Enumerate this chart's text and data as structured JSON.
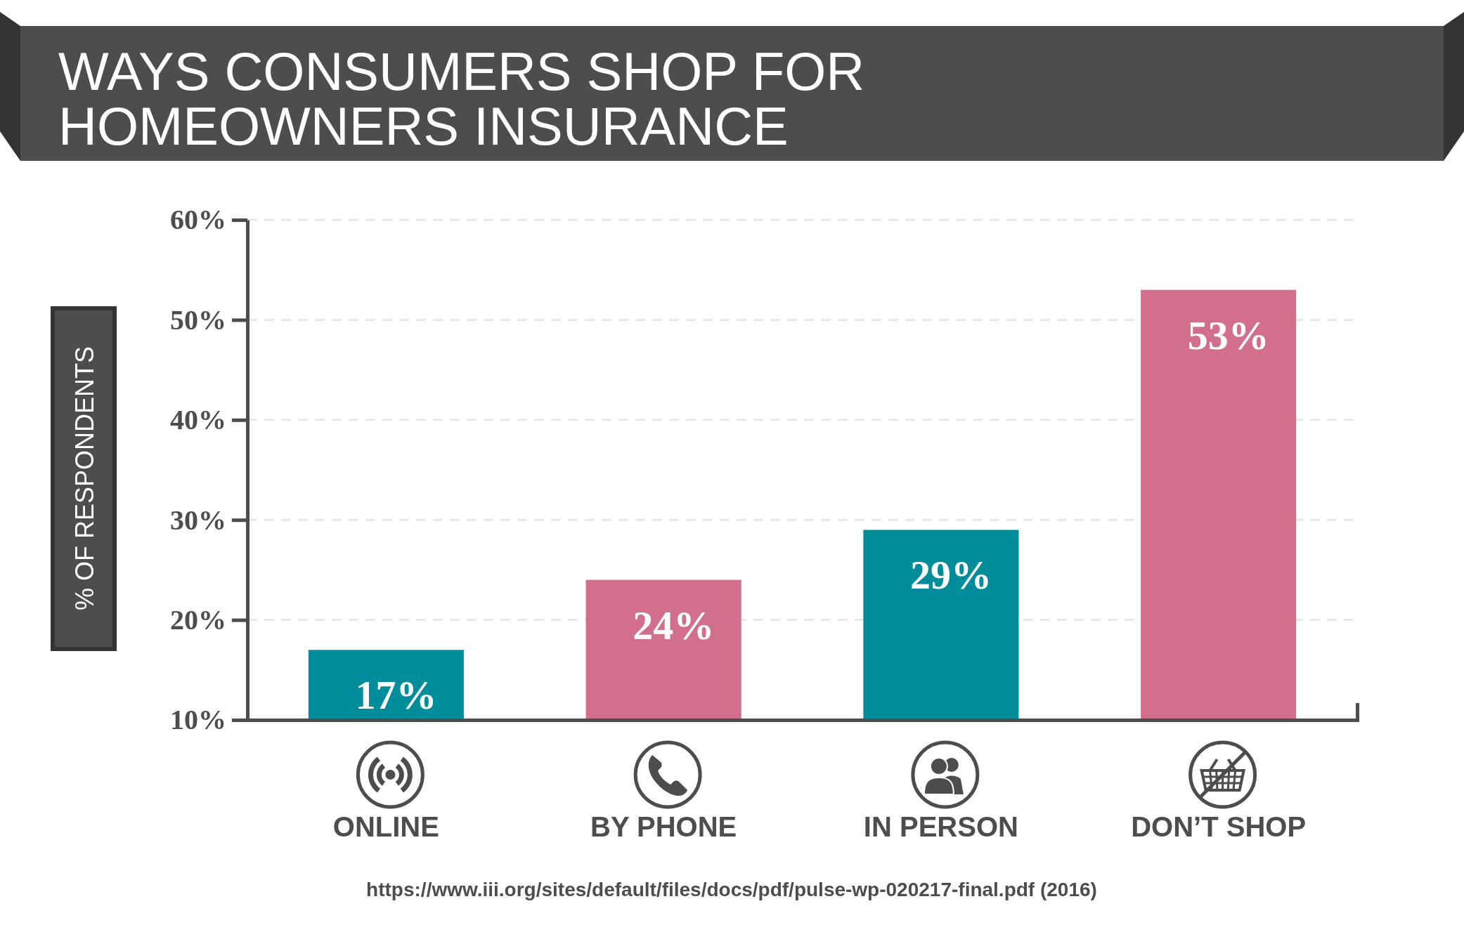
{
  "chart_data": {
    "type": "bar",
    "title": "WAYS CONSUMERS SHOP FOR HOMEOWNERS INSURANCE",
    "ylabel": "% OF RESPONDENTS",
    "categories": [
      "ONLINE",
      "BY PHONE",
      "IN PERSON",
      "DON’T SHOP"
    ],
    "values": [
      17,
      24,
      29,
      53
    ],
    "colors": [
      "#008d9b",
      "#d16f8d",
      "#008d9b",
      "#d16f8d"
    ],
    "value_labels": [
      "17%",
      "24%",
      "29%",
      "53%"
    ],
    "ylim": [
      10,
      60
    ],
    "yticks": [
      {
        "value": 10,
        "label": "10%"
      },
      {
        "value": 20,
        "label": "20%"
      },
      {
        "value": 30,
        "label": "30%"
      },
      {
        "value": 40,
        "label": "40%"
      },
      {
        "value": 50,
        "label": "50%"
      },
      {
        "value": 60,
        "label": "60%"
      }
    ],
    "grid": "y",
    "annotations": [
      "https://www.iii.org/sites/default/files/docs/pdf/pulse-wp-020217-final.pdf (2016)"
    ]
  }
}
